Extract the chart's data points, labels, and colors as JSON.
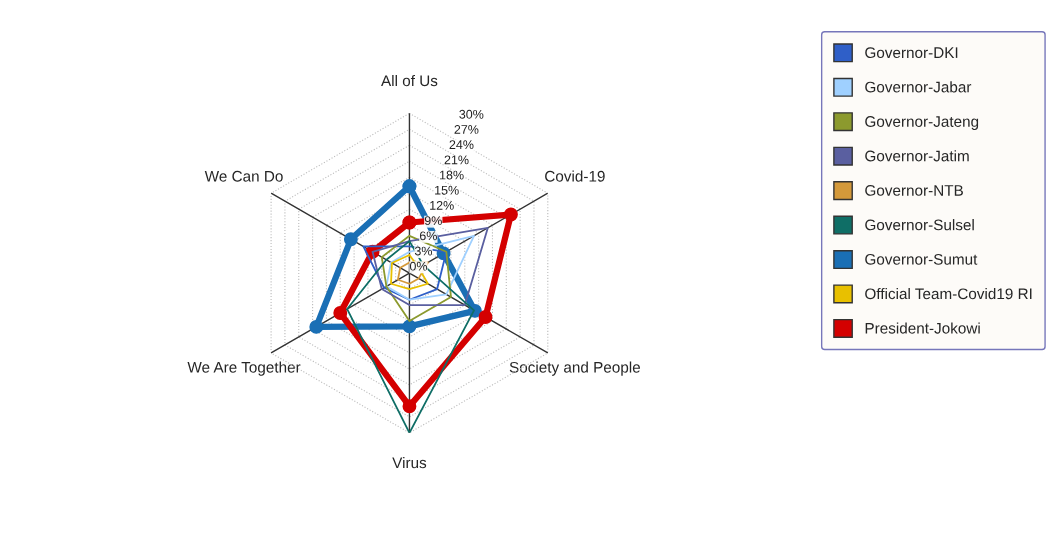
{
  "chart_data": {
    "type": "radar",
    "categories": [
      "All of Us",
      "Covid-19",
      "Society and People",
      "Virus",
      "We Are Together",
      "We Can Do"
    ],
    "ylim": [
      0,
      30
    ],
    "yticks": [
      {
        "value": 0,
        "label": "0%"
      },
      {
        "value": 3,
        "label": "3%"
      },
      {
        "value": 6,
        "label": "6%"
      },
      {
        "value": 9,
        "label": "9%"
      },
      {
        "value": 12,
        "label": "12%"
      },
      {
        "value": 15,
        "label": "15%"
      },
      {
        "value": 18,
        "label": "18%"
      },
      {
        "value": 21,
        "label": "21%"
      },
      {
        "value": 24,
        "label": "24%"
      },
      {
        "value": 27,
        "label": "27%"
      },
      {
        "value": 30,
        "label": "30%"
      }
    ],
    "grid": true,
    "legend": "right",
    "marker": "none",
    "series": [
      {
        "name": "Governor-DKI",
        "color": "#2f5fc8",
        "values": [
          5,
          8,
          6,
          5,
          5.5,
          10
        ]
      },
      {
        "name": "Governor-Jabar",
        "color": "#9fd0ff",
        "values": [
          4,
          14,
          8,
          5,
          5,
          4
        ]
      },
      {
        "name": "Governor-Jateng",
        "color": "#8c9a2e",
        "values": [
          7,
          8,
          9,
          9,
          5,
          6
        ]
      },
      {
        "name": "Governor-Jatim",
        "color": "#5a5fa0",
        "values": [
          6,
          17,
          12,
          6,
          6,
          8
        ]
      },
      {
        "name": "Governor-NTB",
        "color": "#d4993a",
        "values": [
          2,
          4,
          2,
          2,
          2.5,
          2
        ]
      },
      {
        "name": "Governor-Sulsel",
        "color": "#0f6e66",
        "values": [
          6,
          3,
          14,
          30,
          13.5,
          5
        ]
      },
      {
        "name": "Governor-Sumut",
        "color": "#1a6fb5",
        "marker": "circle",
        "values": [
          16.3,
          7.4,
          14.2,
          10,
          20.2,
          12.7
        ]
      },
      {
        "name": "Official Team-Covid19 RI",
        "color": "#e8c000",
        "values": [
          3.4,
          2,
          4,
          3,
          4,
          3.8
        ]
      },
      {
        "name": "President-Jokowi",
        "color": "#d40000",
        "marker": "circle",
        "values": [
          9.5,
          22,
          16.5,
          25,
          15,
          8
        ]
      }
    ]
  }
}
